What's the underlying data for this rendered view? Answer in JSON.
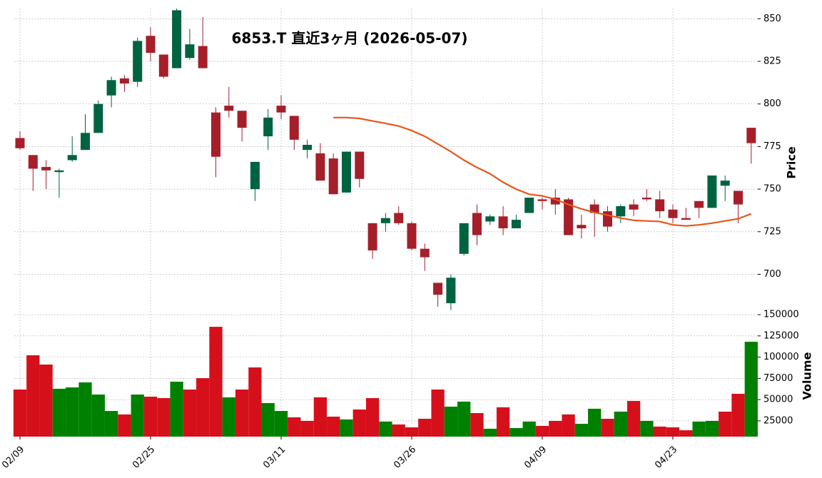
{
  "chart_data": {
    "type": "candlestick",
    "title": "6853.T  直近3ヶ月  (2026-05-07)",
    "categories": [
      "02/09",
      null,
      null,
      null,
      null,
      null,
      null,
      null,
      null,
      null,
      "02/25",
      null,
      null,
      null,
      null,
      null,
      null,
      null,
      null,
      null,
      "03/11",
      null,
      null,
      null,
      null,
      null,
      null,
      null,
      null,
      null,
      "03/26",
      null,
      null,
      null,
      null,
      null,
      null,
      null,
      null,
      null,
      "04/09",
      null,
      null,
      null,
      null,
      null,
      null,
      null,
      null,
      null,
      "04/23",
      null,
      null,
      null,
      null,
      null,
      null
    ],
    "open": [
      780,
      770,
      763,
      760,
      767,
      773,
      783,
      805,
      815,
      813,
      840,
      829,
      821,
      827,
      834,
      795,
      799,
      796,
      750,
      781,
      799,
      793,
      773,
      771,
      768,
      748,
      772,
      730,
      730,
      736,
      730,
      715,
      695,
      683,
      712,
      736,
      731,
      734,
      727,
      736,
      744,
      745,
      744,
      729,
      741,
      737,
      734,
      741,
      745,
      744,
      738,
      733,
      743,
      739,
      752,
      749,
      786
    ],
    "high": [
      784,
      770,
      767,
      762,
      781,
      794,
      802,
      816,
      817,
      839,
      845,
      829,
      856,
      844,
      851,
      798,
      810,
      796,
      766,
      797,
      805,
      793,
      779,
      777,
      771,
      772,
      772,
      730,
      736,
      740,
      731,
      718,
      695,
      700,
      730,
      741,
      735,
      740,
      735,
      745,
      745,
      750,
      745,
      735,
      744,
      740,
      741,
      744,
      750,
      749,
      741,
      739,
      743,
      758,
      758,
      749,
      786
    ],
    "low": [
      773,
      749,
      750,
      745,
      766,
      773,
      783,
      798,
      807,
      810,
      825,
      815,
      821,
      826,
      821,
      757,
      792,
      778,
      743,
      773,
      791,
      773,
      768,
      755,
      747,
      748,
      751,
      709,
      725,
      729,
      714,
      702,
      681,
      679,
      711,
      717,
      729,
      723,
      727,
      736,
      738,
      735,
      723,
      721,
      722,
      725,
      730,
      734,
      743,
      733,
      730,
      732,
      733,
      739,
      743,
      730,
      765
    ],
    "close": [
      774,
      762,
      761,
      761,
      770,
      783,
      800,
      814,
      812,
      837,
      830,
      816,
      855,
      835,
      821,
      769,
      796,
      786,
      766,
      792,
      795,
      779,
      776,
      755,
      747,
      772,
      756,
      714,
      733,
      730,
      715,
      710,
      688,
      698,
      730,
      723,
      734,
      727,
      732,
      745,
      743,
      741,
      723,
      727,
      736,
      728,
      740,
      738,
      744,
      737,
      733,
      732,
      739,
      758,
      755,
      741,
      777
    ],
    "up_color": "#006340",
    "down_color": "#a51f2a",
    "ma": {
      "color": "#e8561a",
      "values": [
        null,
        null,
        null,
        null,
        null,
        null,
        null,
        null,
        null,
        null,
        null,
        null,
        null,
        null,
        null,
        null,
        null,
        null,
        null,
        null,
        null,
        null,
        null,
        null,
        792,
        792,
        791.5,
        790,
        788.6,
        787,
        784.4,
        781,
        776.5,
        772,
        767,
        762.7,
        759,
        754,
        750,
        747,
        746,
        744,
        741,
        738.4,
        736.3,
        734.7,
        733,
        731.7,
        731.3,
        731,
        729,
        728.4,
        729,
        730,
        731.3,
        732.6,
        735.5
      ]
    },
    "ylim": [
      678,
      856
    ],
    "yticks": [
      700,
      725,
      750,
      775,
      800,
      825,
      850
    ],
    "ylabel": "Price",
    "grid": true,
    "volume": {
      "values": [
        61900,
        102200,
        91300,
        62800,
        64400,
        70300,
        56000,
        36700,
        32600,
        56000,
        53500,
        51800,
        71100,
        61900,
        75300,
        135700,
        52700,
        61900,
        87900,
        46000,
        36700,
        29200,
        25000,
        52700,
        30000,
        26700,
        38400,
        51800,
        24200,
        20800,
        17400,
        27500,
        61900,
        41800,
        47700,
        34200,
        15800,
        41000,
        16600,
        24200,
        19100,
        25000,
        32600,
        21600,
        39300,
        27500,
        35900,
        48500,
        25000,
        18300,
        17400,
        14000,
        24200,
        25000,
        35900,
        56900,
        118100
      ],
      "up_color": "#008000",
      "down_color": "#d6101b",
      "ylim": [
        6500,
        153400
      ],
      "yticks": [
        25000,
        50000,
        75000,
        100000,
        125000,
        150000
      ],
      "ylabel": "Volume"
    }
  }
}
